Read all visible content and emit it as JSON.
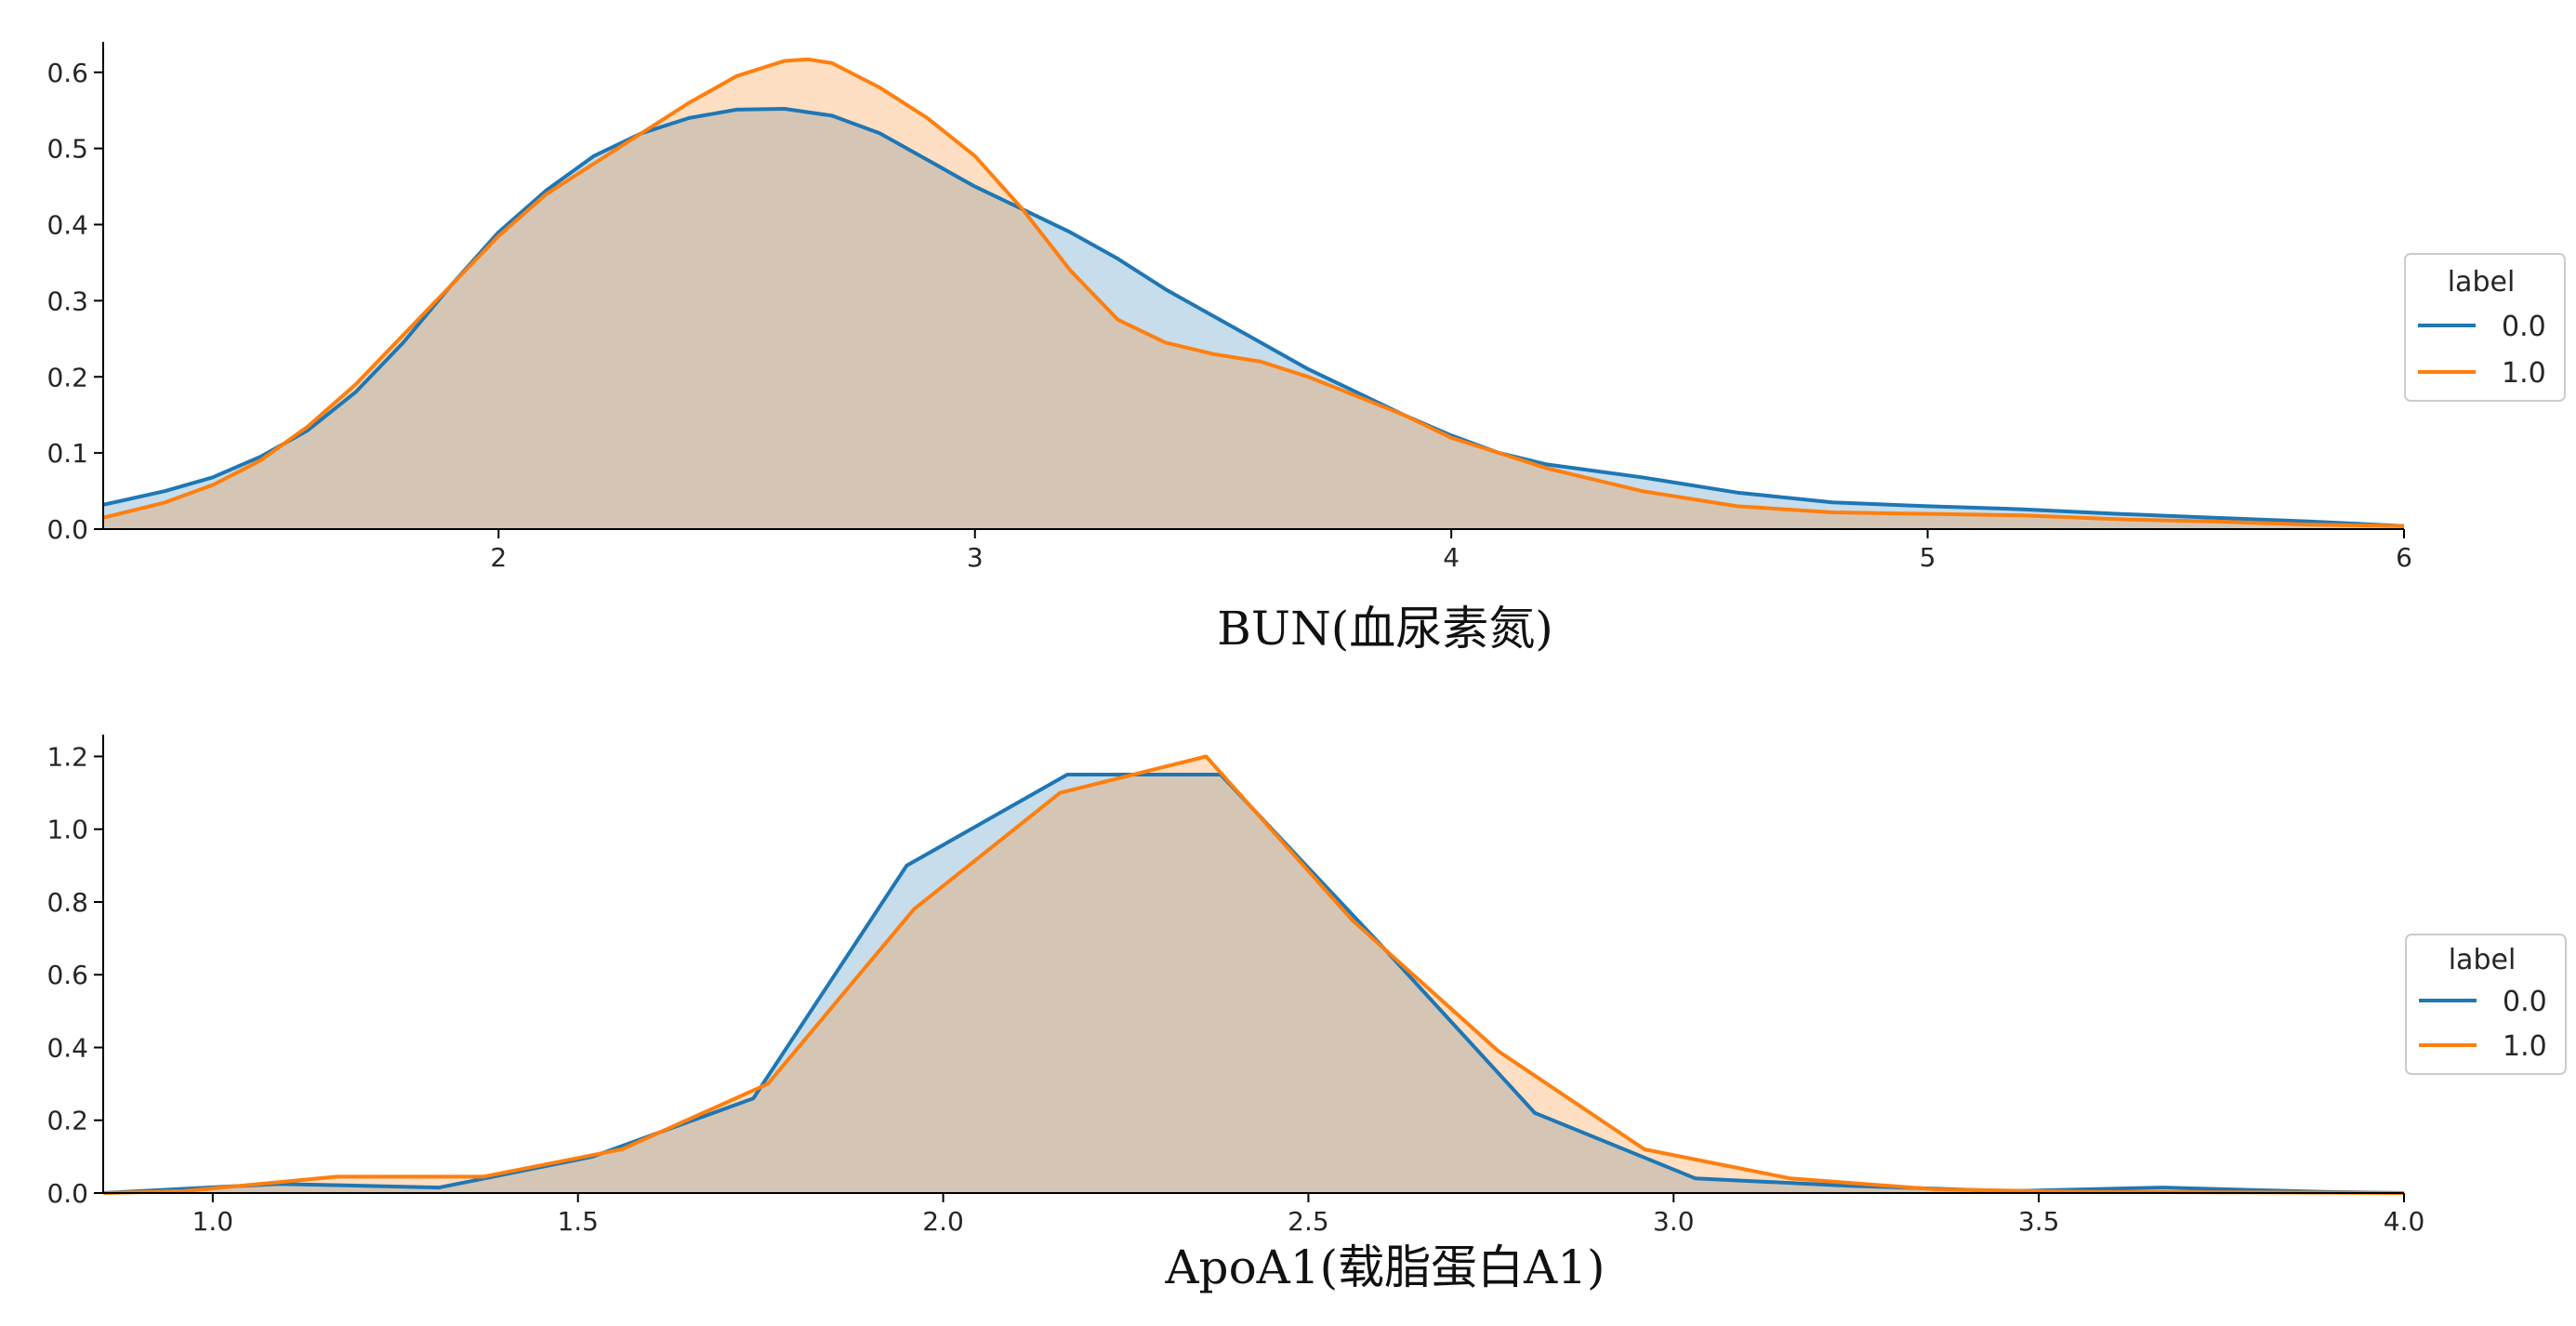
{
  "colors": {
    "series0": "#1f77b4",
    "series1": "#ff7f0e",
    "axis": "#000000",
    "legend_border": "#cccccc"
  },
  "chart_data": [
    {
      "type": "area",
      "xlabel": "BUN(血尿素氮)",
      "ylabel": "",
      "xlim": [
        1.17,
        6.0
      ],
      "ylim": [
        0,
        0.64
      ],
      "xticks": [
        2,
        3,
        4,
        5,
        6
      ],
      "xtick_labels": [
        "2",
        "3",
        "4",
        "5",
        "6"
      ],
      "yticks": [
        0.0,
        0.1,
        0.2,
        0.3,
        0.4,
        0.5,
        0.6
      ],
      "ytick_labels": [
        "0.0",
        "0.1",
        "0.2",
        "0.3",
        "0.4",
        "0.5",
        "0.6"
      ],
      "grid": false,
      "legend": {
        "title": "label",
        "placement": "center-right",
        "entries": [
          "0.0",
          "1.0"
        ]
      },
      "series": [
        {
          "name": "0.0",
          "x": [
            1.17,
            1.3,
            1.4,
            1.5,
            1.6,
            1.7,
            1.8,
            1.9,
            2.0,
            2.1,
            2.2,
            2.3,
            2.4,
            2.5,
            2.6,
            2.7,
            2.8,
            2.9,
            3.0,
            3.1,
            3.2,
            3.3,
            3.4,
            3.5,
            3.6,
            3.7,
            3.8,
            3.9,
            4.0,
            4.1,
            4.2,
            4.4,
            4.6,
            4.8,
            5.0,
            5.2,
            5.4,
            5.6,
            5.8,
            6.0
          ],
          "y": [
            0.032,
            0.05,
            0.068,
            0.095,
            0.13,
            0.18,
            0.245,
            0.32,
            0.39,
            0.445,
            0.49,
            0.52,
            0.54,
            0.551,
            0.552,
            0.543,
            0.52,
            0.485,
            0.45,
            0.42,
            0.39,
            0.355,
            0.315,
            0.28,
            0.245,
            0.21,
            0.18,
            0.15,
            0.123,
            0.1,
            0.085,
            0.068,
            0.048,
            0.035,
            0.03,
            0.026,
            0.02,
            0.015,
            0.01,
            0.004
          ]
        },
        {
          "name": "1.0",
          "x": [
            1.17,
            1.3,
            1.4,
            1.5,
            1.6,
            1.7,
            1.8,
            1.9,
            2.0,
            2.1,
            2.2,
            2.3,
            2.4,
            2.5,
            2.6,
            2.65,
            2.7,
            2.8,
            2.9,
            3.0,
            3.1,
            3.2,
            3.3,
            3.4,
            3.5,
            3.6,
            3.7,
            3.8,
            3.9,
            4.0,
            4.1,
            4.2,
            4.4,
            4.6,
            4.8,
            5.0,
            5.2,
            5.4,
            5.6,
            5.8,
            6.0
          ],
          "y": [
            0.015,
            0.035,
            0.058,
            0.09,
            0.135,
            0.19,
            0.255,
            0.32,
            0.385,
            0.44,
            0.48,
            0.52,
            0.56,
            0.595,
            0.615,
            0.617,
            0.612,
            0.58,
            0.54,
            0.49,
            0.42,
            0.34,
            0.275,
            0.245,
            0.23,
            0.22,
            0.2,
            0.175,
            0.15,
            0.12,
            0.1,
            0.08,
            0.05,
            0.03,
            0.022,
            0.02,
            0.018,
            0.013,
            0.01,
            0.006,
            0.004
          ]
        }
      ]
    },
    {
      "type": "area",
      "xlabel": "ApoA1(载脂蛋白A1)",
      "ylabel": "",
      "xlim": [
        0.85,
        4.0
      ],
      "ylim": [
        0,
        1.26
      ],
      "xticks": [
        1.0,
        1.5,
        2.0,
        2.5,
        3.0,
        3.5,
        4.0
      ],
      "xtick_labels": [
        "1.0",
        "1.5",
        "2.0",
        "2.5",
        "3.0",
        "3.5",
        "4.0"
      ],
      "yticks": [
        0.0,
        0.2,
        0.4,
        0.6,
        0.8,
        1.0,
        1.2
      ],
      "ytick_labels": [
        "0.0",
        "0.2",
        "0.4",
        "0.6",
        "0.8",
        "1.0",
        "1.2"
      ],
      "grid": false,
      "legend": {
        "title": "label",
        "placement": "center-right",
        "entries": [
          "0.0",
          "1.0"
        ]
      },
      "series": [
        {
          "name": "0.0",
          "x": [
            0.85,
            1.09,
            1.31,
            1.52,
            1.74,
            1.95,
            2.17,
            2.38,
            2.6,
            2.81,
            3.03,
            3.24,
            3.46,
            3.67,
            3.89,
            4.0
          ],
          "y": [
            0.0,
            0.025,
            0.015,
            0.1,
            0.26,
            0.9,
            1.15,
            1.15,
            0.68,
            0.22,
            0.04,
            0.02,
            0.005,
            0.015,
            0.003,
            0.0
          ]
        },
        {
          "name": "1.0",
          "x": [
            0.85,
            0.96,
            1.17,
            1.37,
            1.56,
            1.76,
            1.96,
            2.16,
            2.36,
            2.56,
            2.76,
            2.96,
            3.16,
            3.36,
            3.56,
            3.76,
            4.0
          ],
          "y": [
            0.0,
            0.005,
            0.045,
            0.045,
            0.12,
            0.3,
            0.78,
            1.1,
            1.2,
            0.75,
            0.39,
            0.12,
            0.04,
            0.01,
            0.003,
            0.002,
            0.0
          ]
        }
      ]
    }
  ]
}
